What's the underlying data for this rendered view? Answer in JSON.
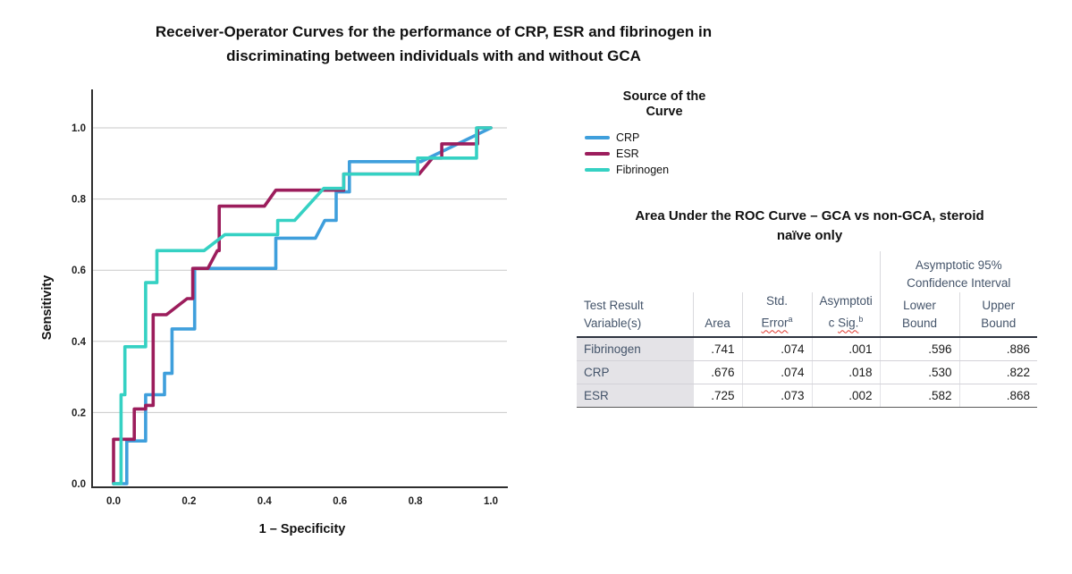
{
  "title": {
    "line1": "Receiver-Operator Curves for the performance of CRP, ESR and fibrinogen in",
    "line2": "discriminating between individuals with and without GCA"
  },
  "legend": {
    "title_line1": "Source of the",
    "title_line2": "Curve",
    "items": [
      {
        "label": "CRP",
        "color": "#3f9fdc"
      },
      {
        "label": "ESR",
        "color": "#9c1d5c"
      },
      {
        "label": "Fibrinogen",
        "color": "#35d1c3"
      }
    ]
  },
  "table": {
    "title_line1": "Area Under the ROC Curve – GCA vs non-GCA, steroid",
    "title_line2": "naïve only",
    "headers": {
      "ci_span_line1": "Asymptotic 95%",
      "ci_span_line2": "Confidence Interval",
      "col1_line1": "Test Result",
      "col1_line2": "Variable(s)",
      "area": "Area",
      "std_line1": "Std.",
      "std_word": "Error",
      "std_sup": "a",
      "sig_line1": "Asymptoti",
      "sig_line2_pre": "c ",
      "sig_word": "Sig.",
      "sig_sup": "b",
      "lower_line1": "Lower",
      "lower_line2": "Bound",
      "upper_line1": "Upper",
      "upper_line2": "Bound"
    },
    "rows": [
      {
        "label": "Fibrinogen",
        "area": ".741",
        "std_error": ".074",
        "sig": ".001",
        "lower": ".596",
        "upper": ".886"
      },
      {
        "label": "CRP",
        "area": ".676",
        "std_error": ".074",
        "sig": ".018",
        "lower": ".530",
        "upper": ".822"
      },
      {
        "label": "ESR",
        "area": ".725",
        "std_error": ".073",
        "sig": ".002",
        "lower": ".582",
        "upper": ".868"
      }
    ]
  },
  "chart_data": {
    "type": "line",
    "subtype": "roc-step-curves",
    "title": "Receiver-Operator Curves for the performance of CRP, ESR and fibrinogen in discriminating between individuals with and without GCA",
    "xlabel": "1 – Specificity",
    "ylabel": "Sensitivity",
    "xlim": [
      0,
      1
    ],
    "ylim": [
      0,
      1
    ],
    "x_ticks": [
      0.0,
      0.2,
      0.4,
      0.6,
      0.8,
      1.0
    ],
    "y_ticks": [
      0.0,
      0.2,
      0.4,
      0.6,
      0.8,
      1.0
    ],
    "grid": "horizontal-only",
    "legend_title": "Source of the Curve",
    "legend_position": "right-top",
    "series": [
      {
        "name": "CRP",
        "color": "#3f9fdc",
        "auc": 0.676,
        "points": [
          [
            0,
            0
          ],
          [
            0.035,
            0
          ],
          [
            0.035,
            0.12
          ],
          [
            0.085,
            0.12
          ],
          [
            0.085,
            0.25
          ],
          [
            0.135,
            0.25
          ],
          [
            0.135,
            0.31
          ],
          [
            0.155,
            0.31
          ],
          [
            0.155,
            0.435
          ],
          [
            0.215,
            0.435
          ],
          [
            0.215,
            0.605
          ],
          [
            0.43,
            0.605
          ],
          [
            0.43,
            0.69
          ],
          [
            0.535,
            0.69
          ],
          [
            0.56,
            0.74
          ],
          [
            0.59,
            0.74
          ],
          [
            0.59,
            0.82
          ],
          [
            0.625,
            0.82
          ],
          [
            0.625,
            0.905
          ],
          [
            0.815,
            0.905
          ],
          [
            1,
            1
          ]
        ]
      },
      {
        "name": "ESR",
        "color": "#9c1d5c",
        "auc": 0.725,
        "points": [
          [
            0,
            0
          ],
          [
            0,
            0.125
          ],
          [
            0.055,
            0.125
          ],
          [
            0.055,
            0.21
          ],
          [
            0.085,
            0.21
          ],
          [
            0.085,
            0.22
          ],
          [
            0.105,
            0.22
          ],
          [
            0.105,
            0.475
          ],
          [
            0.14,
            0.475
          ],
          [
            0.195,
            0.52
          ],
          [
            0.21,
            0.52
          ],
          [
            0.21,
            0.605
          ],
          [
            0.25,
            0.605
          ],
          [
            0.275,
            0.655
          ],
          [
            0.28,
            0.655
          ],
          [
            0.28,
            0.78
          ],
          [
            0.4,
            0.78
          ],
          [
            0.43,
            0.825
          ],
          [
            0.61,
            0.825
          ],
          [
            0.61,
            0.87
          ],
          [
            0.81,
            0.87
          ],
          [
            0.845,
            0.915
          ],
          [
            0.87,
            0.915
          ],
          [
            0.87,
            0.955
          ],
          [
            0.965,
            0.955
          ],
          [
            0.965,
            1
          ],
          [
            1,
            1
          ]
        ]
      },
      {
        "name": "Fibrinogen",
        "color": "#35d1c3",
        "auc": 0.741,
        "points": [
          [
            0,
            0
          ],
          [
            0.02,
            0
          ],
          [
            0.02,
            0.25
          ],
          [
            0.03,
            0.25
          ],
          [
            0.03,
            0.385
          ],
          [
            0.085,
            0.385
          ],
          [
            0.085,
            0.565
          ],
          [
            0.115,
            0.565
          ],
          [
            0.115,
            0.655
          ],
          [
            0.24,
            0.655
          ],
          [
            0.295,
            0.7
          ],
          [
            0.435,
            0.7
          ],
          [
            0.435,
            0.74
          ],
          [
            0.48,
            0.74
          ],
          [
            0.557,
            0.83
          ],
          [
            0.61,
            0.83
          ],
          [
            0.61,
            0.87
          ],
          [
            0.806,
            0.87
          ],
          [
            0.806,
            0.915
          ],
          [
            0.962,
            0.915
          ],
          [
            0.962,
            1
          ],
          [
            1,
            1
          ]
        ]
      }
    ]
  }
}
